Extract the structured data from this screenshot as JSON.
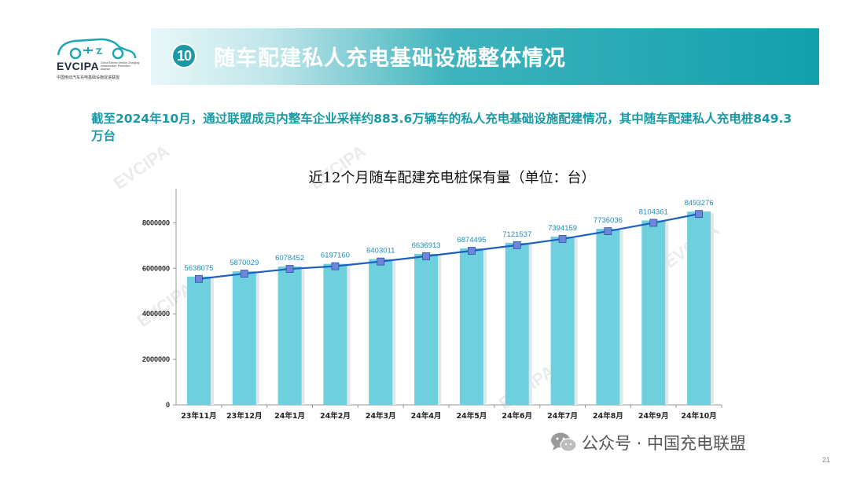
{
  "logo": {
    "name": "EVCIPA",
    "subtitle_en": "China Electric Vehicle Charging Infrastructure Promotion Alliance",
    "subtitle_cn": "中国电动汽车充电基础设施促进联盟"
  },
  "header": {
    "number": "10",
    "title": "随车配建私人充电基础设施整体情况"
  },
  "summary_text": "截至2024年10月，通过联盟成员内整车企业采样约883.6万辆车的私人充电基础设施配建情况，其中随车配建私人充电桩849.3万台",
  "watermark_text": "EVCIPA",
  "footer": {
    "wechat_label": "公众号 · 中国充电联盟",
    "page_number": "21"
  },
  "colors": {
    "accent": "#189aa6",
    "bar": "#6dd0dc",
    "line": "#1f5fbf"
  },
  "chart_data": {
    "type": "bar",
    "title": "近12个月随车配建充电桩保有量（单位：台）",
    "categories": [
      "23年11月",
      "23年12月",
      "24年1月",
      "24年2月",
      "24年3月",
      "24年4月",
      "24年5月",
      "24年6月",
      "24年7月",
      "24年8月",
      "24年9月",
      "24年10月"
    ],
    "values": [
      5638075,
      5870029,
      6078452,
      6197160,
      6403011,
      6636913,
      6874495,
      7121537,
      7394159,
      7736036,
      8104361,
      8493276
    ],
    "overlay": "line",
    "data_labels": true,
    "ylim": [
      0,
      9500000
    ],
    "yticks": [
      0,
      2000000,
      4000000,
      6000000,
      8000000
    ],
    "xlabel": "",
    "ylabel": ""
  }
}
